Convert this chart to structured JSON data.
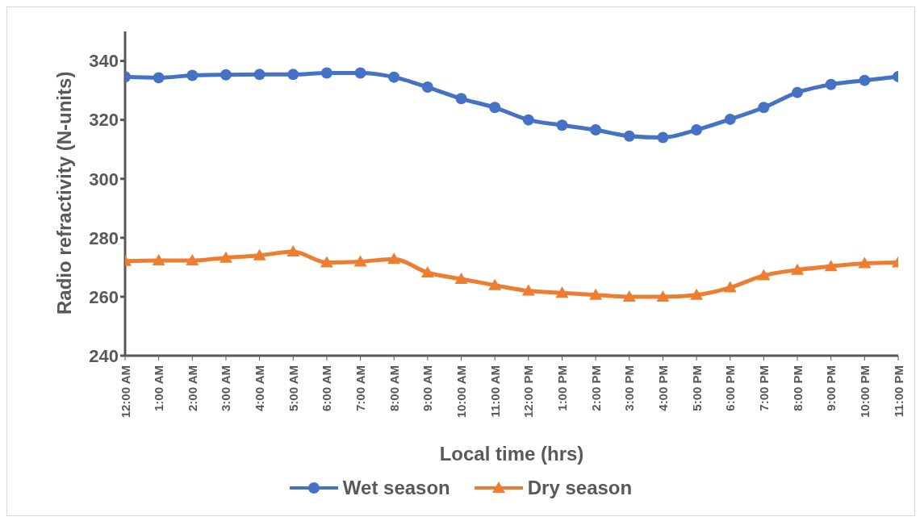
{
  "chart_data": {
    "type": "line",
    "xlabel": "Local time (hrs)",
    "ylabel": "Radio refractivity (N-units)",
    "categories": [
      "12:00 AM",
      "1:00 AM",
      "2:00 AM",
      "3:00 AM",
      "4:00 AM",
      "5:00 AM",
      "6:00 AM",
      "7:00 AM",
      "8:00 AM",
      "9:00 AM",
      "10:00 AM",
      "11:00 AM",
      "12:00 PM",
      "1:00 PM",
      "2:00 PM",
      "3:00 PM",
      "4:00 PM",
      "5:00 PM",
      "6:00 PM",
      "7:00 PM",
      "8:00 PM",
      "9:00 PM",
      "10:00 PM",
      "11:00 PM"
    ],
    "series": [
      {
        "name": "Wet season",
        "color": "#4472c4",
        "marker": "circle",
        "values": [
          334.6,
          334.3,
          335.1,
          335.3,
          335.4,
          335.4,
          335.9,
          335.9,
          334.5,
          331.1,
          327.2,
          324.2,
          320,
          318.2,
          316.6,
          314.5,
          314,
          316.6,
          320.2,
          324.2,
          329.3,
          332,
          333.4,
          334.7
        ]
      },
      {
        "name": "Dry season",
        "color": "#ed7d31",
        "marker": "triangle",
        "values": [
          272.1,
          272.3,
          272.3,
          273.2,
          274,
          275.3,
          271.6,
          271.9,
          272.8,
          268.2,
          266,
          263.9,
          262,
          261.3,
          260.6,
          260,
          260,
          260.6,
          263.1,
          267.2,
          269.1,
          270.3,
          271.3,
          271.6
        ]
      }
    ],
    "ylim": [
      240,
      350
    ],
    "yticks": [
      240,
      260,
      280,
      300,
      320,
      340
    ],
    "grid": false,
    "legend": "bottom",
    "line_style": "solid"
  }
}
